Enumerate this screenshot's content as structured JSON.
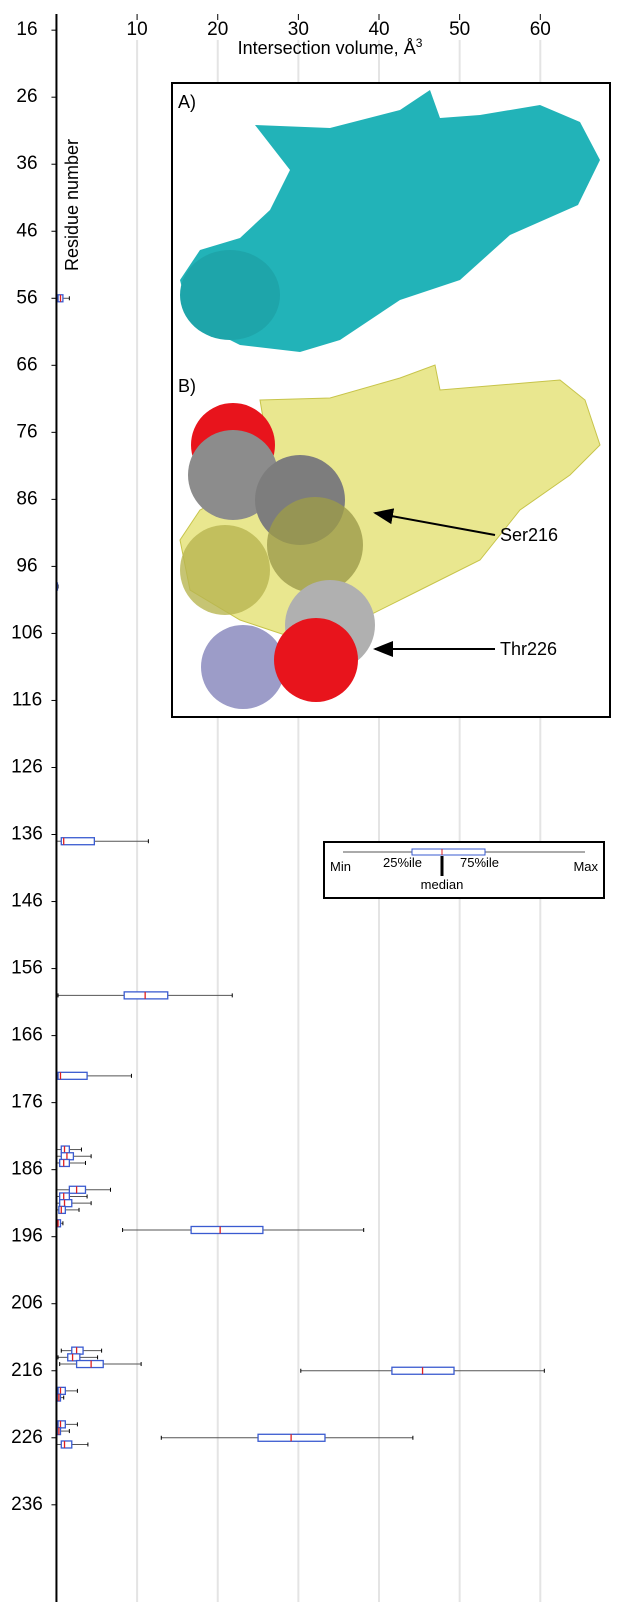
{
  "chart_data": {
    "type": "box",
    "x_label": "Intersection volume, Å",
    "x_label_sup": "3",
    "y_label": "Residue number",
    "xlim": [
      -7,
      71
    ],
    "xticks": [
      10,
      20,
      30,
      40,
      50,
      60
    ],
    "ylim": [
      11.5,
      250.5
    ],
    "yticks": [
      16,
      26,
      36,
      46,
      56,
      66,
      76,
      86,
      96,
      106,
      116,
      126,
      136,
      146,
      156,
      166,
      176,
      186,
      196,
      206,
      216,
      226,
      236
    ],
    "grid": true,
    "box_color": "#3a5bd0",
    "median_color": "#e02020",
    "whisker_color": "#555555",
    "boxes": [
      {
        "residue": 56,
        "min": 0,
        "q1": 0.2,
        "median": 0.5,
        "q3": 0.8,
        "max": 1.6
      },
      {
        "residue": 99,
        "min": 0,
        "q1": 0,
        "median": 0,
        "q3": 0.1,
        "max": 0.2
      },
      {
        "residue": 137,
        "min": 0,
        "q1": 0.6,
        "median": 0.9,
        "q3": 4.7,
        "max": 11.4
      },
      {
        "residue": 160,
        "min": 0.2,
        "q1": 8.4,
        "median": 11,
        "q3": 13.8,
        "max": 21.8
      },
      {
        "residue": 172,
        "min": 0,
        "q1": 0.2,
        "median": 0.5,
        "q3": 3.8,
        "max": 9.3
      },
      {
        "residue": 183,
        "min": 0,
        "q1": 0.6,
        "median": 1,
        "q3": 1.6,
        "max": 3.1
      },
      {
        "residue": 184,
        "min": 0,
        "q1": 0.6,
        "median": 1.3,
        "q3": 2.1,
        "max": 4.3
      },
      {
        "residue": 185,
        "min": 0,
        "q1": 0.4,
        "median": 0.9,
        "q3": 1.6,
        "max": 3.6
      },
      {
        "residue": 189,
        "min": 0,
        "q1": 1.6,
        "median": 2.5,
        "q3": 3.6,
        "max": 6.7
      },
      {
        "residue": 190,
        "min": 0,
        "q1": 0.4,
        "median": 0.9,
        "q3": 1.6,
        "max": 3.8
      },
      {
        "residue": 191,
        "min": 0,
        "q1": 0.4,
        "median": 1,
        "q3": 1.9,
        "max": 4.3
      },
      {
        "residue": 192,
        "min": 0,
        "q1": 0.3,
        "median": 0.6,
        "q3": 1.1,
        "max": 2.8
      },
      {
        "residue": 194,
        "min": 0,
        "q1": 0.1,
        "median": 0.2,
        "q3": 0.5,
        "max": 0.8
      },
      {
        "residue": 195,
        "min": 8.2,
        "q1": 16.7,
        "median": 20.3,
        "q3": 25.6,
        "max": 38.1
      },
      {
        "residue": 213,
        "min": 0.6,
        "q1": 1.9,
        "median": 2.5,
        "q3": 3.3,
        "max": 5.6
      },
      {
        "residue": 214,
        "min": 0.2,
        "q1": 1.4,
        "median": 2,
        "q3": 2.9,
        "max": 5.1
      },
      {
        "residue": 215,
        "min": 0.4,
        "q1": 2.5,
        "median": 4.3,
        "q3": 5.8,
        "max": 10.5
      },
      {
        "residue": 216,
        "min": 30.3,
        "q1": 41.6,
        "median": 45.4,
        "q3": 49.3,
        "max": 60.5
      },
      {
        "residue": 219,
        "min": 0,
        "q1": 0.2,
        "median": 0.5,
        "q3": 1.1,
        "max": 2.6
      },
      {
        "residue": 220,
        "min": 0,
        "q1": 0.1,
        "median": 0.3,
        "q3": 0.5,
        "max": 0.9
      },
      {
        "residue": 224,
        "min": 0,
        "q1": 0.2,
        "median": 0.5,
        "q3": 1.1,
        "max": 2.6
      },
      {
        "residue": 225,
        "min": 0,
        "q1": 0.1,
        "median": 0.3,
        "q3": 0.5,
        "max": 1.6
      },
      {
        "residue": 226,
        "min": 13,
        "q1": 25,
        "median": 29.1,
        "q3": 33.3,
        "max": 44.2
      },
      {
        "residue": 227,
        "min": 0,
        "q1": 0.6,
        "median": 1,
        "q3": 1.9,
        "max": 3.9
      }
    ],
    "inset": {
      "panel_a": "A)",
      "panel_b": "B)",
      "arrow_1": "Ser216",
      "arrow_2": "Thr226"
    },
    "legend": {
      "min": "Min",
      "q1": "25%ile",
      "q3": "75%ile",
      "max": "Max",
      "median": "median"
    }
  }
}
